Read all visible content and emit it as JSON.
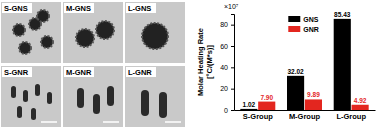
{
  "chart_data": {
    "type": "bar",
    "ylabel": "Molar Heating Rate\n[°C/(M*s)]",
    "y_multiplier": "×10⁷",
    "categories": [
      "S-Group",
      "M-Group",
      "L-Group"
    ],
    "series": [
      {
        "name": "GNS",
        "color": "#000000",
        "values": [
          1.02,
          32.02,
          85.43
        ],
        "value_labels": [
          "1.02",
          "32.02",
          "85.43"
        ]
      },
      {
        "name": "GNR",
        "color": "#e3261f",
        "values": [
          7.9,
          9.89,
          4.92
        ],
        "value_labels": [
          "7.90",
          "9.89",
          "4.92"
        ]
      }
    ],
    "ylim": [
      0,
      90
    ],
    "yticks": [
      0,
      20,
      40,
      60,
      80
    ],
    "grid": false,
    "legend": "top",
    "data_labels": true
  },
  "image_labels": [
    [
      "S-GNS",
      "M-GNS",
      "L-GNS"
    ],
    [
      "S-GNR",
      "M-GNR",
      "L-GNR"
    ]
  ]
}
